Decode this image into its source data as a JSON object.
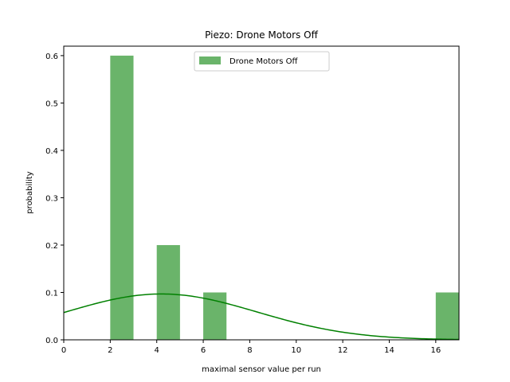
{
  "chart_data": {
    "type": "bar",
    "title": "Piezo: Drone Motors Off",
    "xlabel": "maximal sensor value per run",
    "ylabel": "probability",
    "xlim": [
      0,
      17
    ],
    "ylim": [
      0,
      0.62
    ],
    "xticks": [
      0,
      2,
      4,
      6,
      8,
      10,
      12,
      14,
      16
    ],
    "yticks": [
      0.0,
      0.1,
      0.2,
      0.3,
      0.4,
      0.5,
      0.6
    ],
    "ytick_labels": [
      "0.0",
      "0.1",
      "0.2",
      "0.3",
      "0.4",
      "0.5",
      "0.6"
    ],
    "series": [
      {
        "name": "Drone Motors Off",
        "kind": "histogram",
        "color": "#6ab46a",
        "bins": [
          {
            "x0": 2,
            "x1": 3,
            "value": 0.6
          },
          {
            "x0": 4,
            "x1": 5,
            "value": 0.2
          },
          {
            "x0": 6,
            "x1": 7,
            "value": 0.1
          },
          {
            "x0": 16,
            "x1": 17,
            "value": 0.1
          }
        ]
      },
      {
        "kind": "line",
        "color": "#008000",
        "curve": "normal-pdf",
        "mean": 4.2,
        "std": 4.12,
        "x": [
          0,
          1,
          2,
          3,
          4,
          5,
          6,
          7,
          8,
          9,
          10,
          11,
          12,
          13,
          14,
          15,
          16,
          17
        ],
        "y": [
          0.058,
          0.071,
          0.084,
          0.093,
          0.097,
          0.095,
          0.088,
          0.076,
          0.063,
          0.049,
          0.036,
          0.025,
          0.016,
          0.01,
          0.006,
          0.003,
          0.002,
          0.001
        ]
      }
    ],
    "legend": {
      "position": "top-center",
      "entries": [
        "Drone Motors Off"
      ]
    },
    "grid": false
  }
}
